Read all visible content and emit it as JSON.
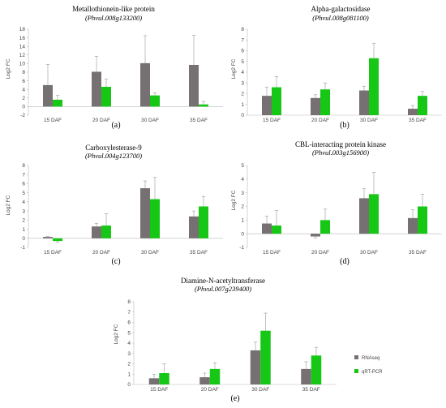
{
  "legend": {
    "items": [
      {
        "label": "RNAseq",
        "color": "#777072"
      },
      {
        "label": "qRT-PCR",
        "color": "#16c716"
      }
    ]
  },
  "chart_data": [
    {
      "type": "bar",
      "title": "Metallothionein-like protein",
      "subtitle": "(Phvul.008g133200)",
      "panel_label": "(a)",
      "ylabel": "Log2 FC",
      "categories": [
        "15 DAF",
        "20 DAF",
        "30 DAF",
        "35 DAF"
      ],
      "ylim": [
        -2,
        18
      ],
      "yticks": [
        -2,
        0,
        2,
        4,
        6,
        8,
        10,
        12,
        14,
        16,
        18
      ],
      "series": [
        {
          "name": "RNAseq",
          "values": [
            5.0,
            8.1,
            10.1,
            9.7
          ],
          "errors": [
            4.8,
            3.6,
            6.4,
            6.9
          ]
        },
        {
          "name": "qRT-PCR",
          "values": [
            1.6,
            4.6,
            2.6,
            0.5
          ],
          "errors": [
            1.0,
            1.8,
            0.6,
            0.7
          ]
        }
      ]
    },
    {
      "type": "bar",
      "title": "Alpha-galactosidase",
      "subtitle": "(Phvul.008g081100)",
      "panel_label": "(b)",
      "ylabel": "Log2 FC",
      "categories": [
        "15 DAF",
        "20 DAF",
        "30 DAF",
        "35 DAF"
      ],
      "ylim": [
        0,
        8
      ],
      "yticks": [
        0,
        1,
        2,
        3,
        4,
        5,
        6,
        7,
        8
      ],
      "series": [
        {
          "name": "RNAseq",
          "values": [
            1.8,
            1.6,
            2.3,
            0.6
          ],
          "errors": [
            0.8,
            0.3,
            0.4,
            0.3
          ]
        },
        {
          "name": "qRT-PCR",
          "values": [
            2.6,
            2.4,
            5.3,
            1.8
          ],
          "errors": [
            1.0,
            0.6,
            1.4,
            0.4
          ]
        }
      ]
    },
    {
      "type": "bar",
      "title": "Carboxylesterase-9",
      "subtitle": "(Phvul.004g123700)",
      "panel_label": "(c)",
      "ylabel": "Log2 FC",
      "categories": [
        "15 DAF",
        "20 DAF",
        "30 DAF",
        "35 DAF"
      ],
      "ylim": [
        -1,
        8
      ],
      "yticks": [
        -1,
        0,
        1,
        2,
        3,
        4,
        5,
        6,
        7,
        8
      ],
      "series": [
        {
          "name": "RNAseq",
          "values": [
            0.15,
            1.3,
            5.5,
            2.4
          ],
          "errors": [
            0.05,
            0.35,
            0.8,
            0.6
          ]
        },
        {
          "name": "qRT-PCR",
          "values": [
            -0.3,
            1.4,
            4.3,
            3.5
          ],
          "errors": [
            0.15,
            1.3,
            2.4,
            1.1
          ]
        }
      ]
    },
    {
      "type": "bar",
      "title": "CBL-interacting protein kinase",
      "subtitle": "(Phvul.003g156900)",
      "panel_label": "(d)",
      "ylabel": "Log2 FC",
      "categories": [
        "15 DAF",
        "20 DAF",
        "30 DAF",
        "35 DAF"
      ],
      "ylim": [
        -1,
        5
      ],
      "yticks": [
        -1,
        0,
        1,
        2,
        3,
        4,
        5
      ],
      "series": [
        {
          "name": "RNAseq",
          "values": [
            0.75,
            -0.2,
            2.6,
            1.15
          ],
          "errors": [
            0.55,
            0.1,
            0.7,
            0.6
          ]
        },
        {
          "name": "qRT-PCR",
          "values": [
            0.6,
            1.0,
            2.9,
            2.0
          ],
          "errors": [
            1.1,
            0.8,
            1.6,
            0.9
          ]
        }
      ]
    },
    {
      "type": "bar",
      "title": "Diamine-N-acetyltransferase",
      "subtitle": "(Phvul.007g239400)",
      "panel_label": "(e)",
      "ylabel": "Log2 FC",
      "categories": [
        "15 DAF",
        "20 DAF",
        "30 DAF",
        "35 DAF"
      ],
      "ylim": [
        0,
        8
      ],
      "yticks": [
        0,
        1,
        2,
        3,
        4,
        5,
        6,
        7,
        8
      ],
      "series": [
        {
          "name": "RNAseq",
          "values": [
            0.6,
            0.7,
            3.3,
            1.5
          ],
          "errors": [
            0.4,
            0.4,
            0.8,
            0.7
          ]
        },
        {
          "name": "qRT-PCR",
          "values": [
            1.1,
            1.5,
            5.2,
            2.8
          ],
          "errors": [
            0.9,
            0.6,
            1.7,
            0.8
          ]
        }
      ]
    }
  ]
}
